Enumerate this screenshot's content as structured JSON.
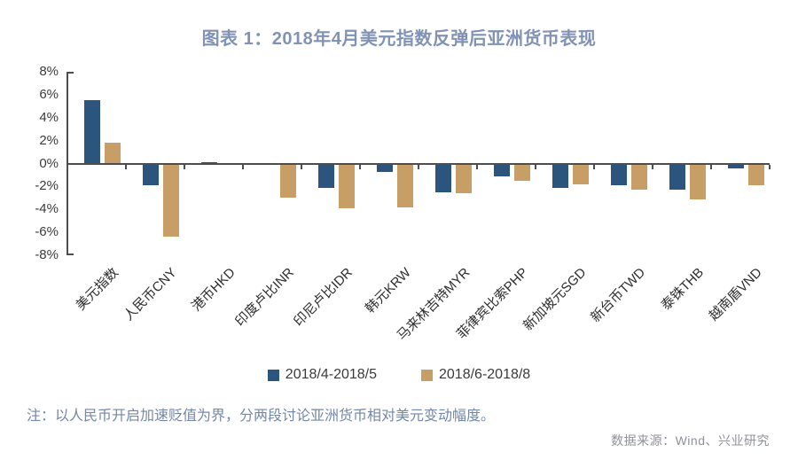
{
  "header": {
    "title": "图表 1：2018年4月美元指数反弹后亚洲货币表现"
  },
  "chart_data": {
    "type": "bar",
    "title": "图表 1：2018年4月美元指数反弹后亚洲货币表现",
    "categories": [
      "美元指数",
      "人民币CNY",
      "港币HKD",
      "印度卢比INR",
      "印尼卢比IDR",
      "韩元KRW",
      "马来林吉特MYR",
      "菲律宾比索PHP",
      "新加坡元SGD",
      "新台币TWD",
      "泰铢THB",
      "越南盾VND"
    ],
    "series": [
      {
        "name": "2018/4-2018/5",
        "color": "#2b557d",
        "values": [
          5.5,
          -1.9,
          0.1,
          0,
          -2.1,
          -0.7,
          -2.5,
          -1.1,
          -2.1,
          -1.9,
          -2.3,
          -0.4
        ]
      },
      {
        "name": "2018/6-2018/8",
        "color": "#c79f66",
        "values": [
          1.8,
          -6.4,
          -0.1,
          -3.0,
          -3.9,
          -3.8,
          -2.6,
          -1.5,
          -1.8,
          -2.3,
          -3.1,
          -1.9
        ]
      }
    ],
    "ylabel": "",
    "xlabel": "",
    "ylim": [
      -8,
      8
    ],
    "yticks": [
      8,
      6,
      4,
      2,
      0,
      -2,
      -4,
      -6,
      -8
    ],
    "ytick_suffix": "%",
    "grid": false,
    "legend_position": "bottom"
  },
  "colors": {
    "series1": "#2b557d",
    "series2": "#c79f66",
    "axis": "#4d4d4d",
    "title_text": "#8192b4",
    "note_text": "#7487a6",
    "source_text": "#8d9199"
  },
  "footnote": "注：以人民币开启加速贬值为界，分两段讨论亚洲货币相对美元变动幅度。",
  "source": "数据来源：Wind、兴业研究"
}
